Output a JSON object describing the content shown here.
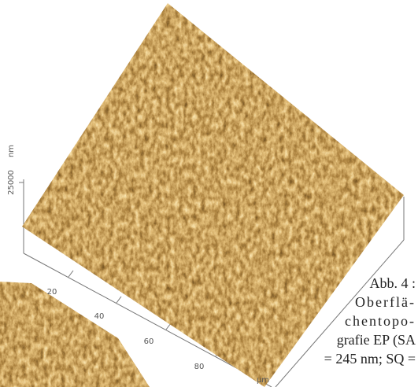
{
  "figure": {
    "z_axis": {
      "unit": "nm",
      "tick": "25000"
    },
    "x_axis": {
      "ticks": [
        "20",
        "40",
        "60",
        "80"
      ],
      "unit": "µm"
    }
  },
  "caption": {
    "lines": [
      "Abb. 4 :",
      "Oberflä-",
      "chentopo-",
      "grafie EP (SA",
      "= 245 nm; SQ ="
    ]
  }
}
